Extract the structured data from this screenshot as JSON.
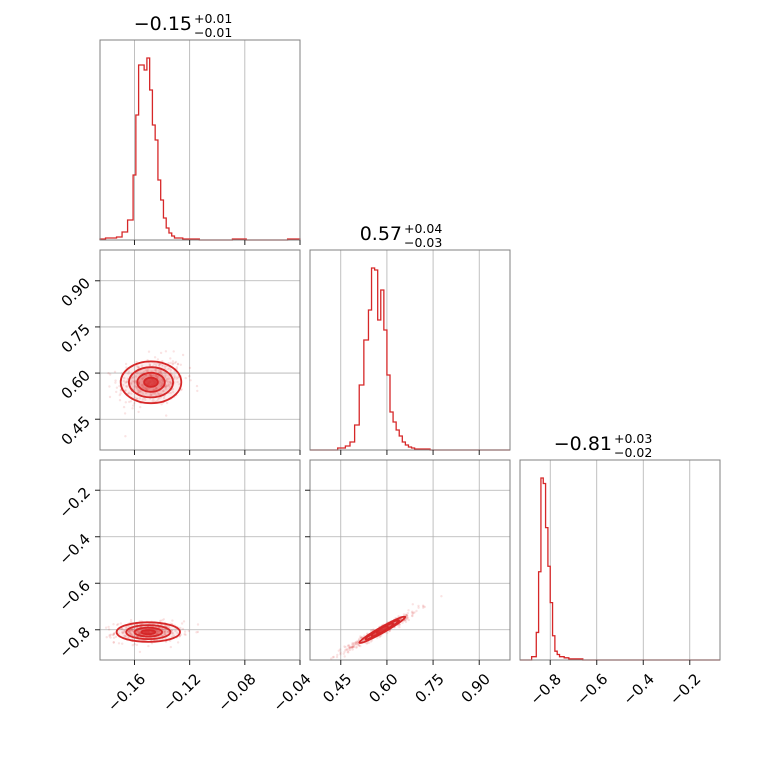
{
  "chart_data": {
    "type": "corner",
    "color": "#d62728",
    "parameters": [
      {
        "median": -0.15,
        "title": {
          "main": "−0.15",
          "plus": "+0.01",
          "minus": "−0.01"
        },
        "range": [
          -0.185,
          -0.04
        ],
        "ticks": [
          {
            "value": -0.16,
            "label": "−0.16"
          },
          {
            "value": -0.12,
            "label": "−0.12"
          },
          {
            "value": -0.08,
            "label": "−0.08"
          },
          {
            "value": -0.04,
            "label": "−0.04"
          }
        ],
        "hist": {
          "bin_edges": [
            -0.185,
            -0.181,
            -0.177,
            -0.173,
            -0.169,
            -0.165,
            -0.161,
            -0.159,
            -0.157,
            -0.155,
            -0.153,
            -0.151,
            -0.149,
            -0.147,
            -0.145,
            -0.143,
            -0.141,
            -0.139,
            -0.137,
            -0.135,
            -0.133,
            -0.131,
            -0.129,
            -0.125,
            -0.121,
            -0.117,
            -0.113,
            -0.109,
            -0.099,
            -0.089,
            -0.079,
            -0.069,
            -0.059,
            -0.049,
            -0.04
          ],
          "counts": [
            1,
            2,
            2,
            3,
            8,
            20,
            65,
            125,
            175,
            175,
            170,
            182,
            150,
            115,
            100,
            60,
            40,
            22,
            12,
            7,
            4,
            2,
            2,
            1,
            1,
            1,
            0,
            0,
            0,
            1,
            0,
            0,
            0,
            1
          ]
        }
      },
      {
        "median": 0.57,
        "title": {
          "main": "0.57",
          "plus": "+0.04",
          "minus": "−0.03"
        },
        "range": [
          0.35,
          1.0
        ],
        "ticks": [
          {
            "value": 0.45,
            "label": "0.45"
          },
          {
            "value": 0.6,
            "label": "0.60"
          },
          {
            "value": 0.75,
            "label": "0.75"
          },
          {
            "value": 0.9,
            "label": "0.90"
          }
        ],
        "hist": {
          "bin_edges": [
            0.35,
            0.44,
            0.465,
            0.48,
            0.495,
            0.51,
            0.525,
            0.54,
            0.55,
            0.56,
            0.57,
            0.58,
            0.59,
            0.6,
            0.61,
            0.62,
            0.63,
            0.64,
            0.65,
            0.66,
            0.67,
            0.68,
            0.69,
            0.7,
            0.72,
            0.74,
            0.76,
            0.8,
            0.85,
            1.0
          ],
          "counts": [
            0,
            2,
            4,
            8,
            25,
            65,
            110,
            140,
            182,
            180,
            130,
            160,
            120,
            75,
            38,
            28,
            20,
            14,
            8,
            5,
            3,
            2,
            1,
            1,
            1,
            0,
            0,
            0,
            0
          ]
        }
      },
      {
        "median": -0.81,
        "title": {
          "main": "−0.81",
          "plus": "+0.03",
          "minus": "−0.02"
        },
        "range": [
          -0.93,
          -0.07
        ],
        "ticks": [
          {
            "value": -0.8,
            "label": "−0.8"
          },
          {
            "value": -0.6,
            "label": "−0.6"
          },
          {
            "value": -0.4,
            "label": "−0.4"
          },
          {
            "value": -0.2,
            "label": "−0.2"
          }
        ],
        "hist": {
          "bin_edges": [
            -0.93,
            -0.88,
            -0.86,
            -0.85,
            -0.84,
            -0.83,
            -0.82,
            -0.81,
            -0.8,
            -0.79,
            -0.78,
            -0.77,
            -0.76,
            -0.74,
            -0.72,
            -0.7,
            -0.66,
            -0.6,
            -0.07
          ],
          "counts": [
            0,
            3,
            25,
            80,
            165,
            160,
            120,
            85,
            52,
            22,
            8,
            5,
            3,
            2,
            1,
            1,
            0,
            0
          ]
        }
      }
    ],
    "pairs": [
      {
        "x": 0,
        "y": 1,
        "center": [
          -0.148,
          0.57
        ],
        "spread": [
          0.012,
          0.04
        ],
        "corr": 0.15,
        "contours": [
          {
            "rx": 0.022,
            "ry": 0.068
          },
          {
            "rx": 0.016,
            "ry": 0.049
          },
          {
            "rx": 0.01,
            "ry": 0.031
          },
          {
            "rx": 0.005,
            "ry": 0.015
          }
        ]
      },
      {
        "x": 0,
        "y": 2,
        "center": [
          -0.15,
          -0.81
        ],
        "spread": [
          0.012,
          0.022
        ],
        "corr": 0.05,
        "contours": [
          {
            "rx": 0.023,
            "ry": 0.042
          },
          {
            "rx": 0.016,
            "ry": 0.03
          },
          {
            "rx": 0.01,
            "ry": 0.019
          },
          {
            "rx": 0.005,
            "ry": 0.009
          }
        ]
      },
      {
        "x": 1,
        "y": 2,
        "center": [
          0.585,
          -0.8
        ],
        "spread": [
          0.06,
          0.045
        ],
        "corr": 0.97,
        "contours": [
          {
            "rx": 0.075,
            "ry": 0.055
          },
          {
            "rx": 0.055,
            "ry": 0.04
          },
          {
            "rx": 0.035,
            "ry": 0.026
          },
          {
            "rx": 0.018,
            "ry": 0.013
          }
        ]
      }
    ],
    "grid": true
  }
}
